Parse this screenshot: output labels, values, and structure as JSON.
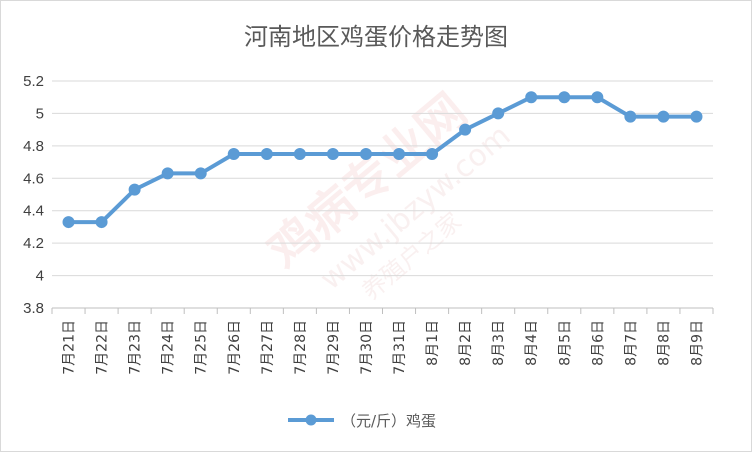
{
  "chart_data": {
    "type": "line",
    "title": "河南地区鸡蛋价格走势图",
    "xlabel": "",
    "ylabel": "",
    "ylim": [
      3.8,
      5.2
    ],
    "yticks": [
      "3.8",
      "4",
      "4.2",
      "4.4",
      "4.6",
      "4.8",
      "5",
      "5.2"
    ],
    "grid": true,
    "legend_position": "bottom",
    "categories": [
      "7月21日",
      "7月22日",
      "7月23日",
      "7月24日",
      "7月25日",
      "7月26日",
      "7月27日",
      "7月28日",
      "7月29日",
      "7月30日",
      "7月31日",
      "8月1日",
      "8月2日",
      "8月3日",
      "8月4日",
      "8月5日",
      "8月6日",
      "8月7日",
      "8月8日",
      "8月9日"
    ],
    "series": [
      {
        "name": "（元/斤）鸡蛋",
        "color": "#5b9bd5",
        "values": [
          4.33,
          4.33,
          4.53,
          4.63,
          4.63,
          4.75,
          4.75,
          4.75,
          4.75,
          4.75,
          4.75,
          4.75,
          4.9,
          5.0,
          5.1,
          5.1,
          5.1,
          4.98,
          4.98,
          4.98
        ]
      }
    ]
  },
  "watermark": {
    "brand": "鸡病专业网",
    "url": "www.jbzyw.com",
    "slogan": "养殖户之家"
  }
}
